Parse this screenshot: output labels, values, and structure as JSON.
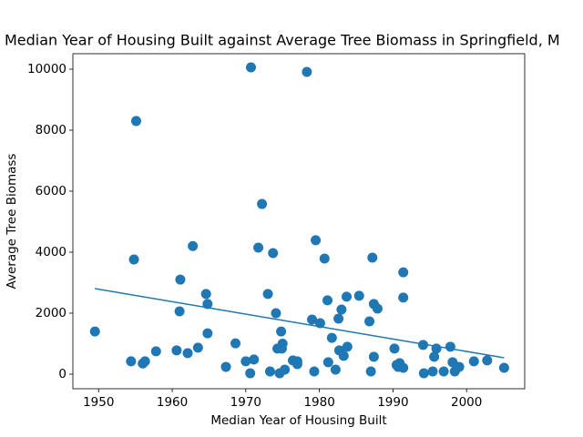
{
  "chart_data": {
    "type": "scatter",
    "title": "Median Year of Housing Built against Average Tree Biomass in Springfield, M",
    "x_label": "Median Year of Housing Built",
    "y_label": "Average Tree Biomass",
    "xlim": [
      1946.5,
      2007.9
    ],
    "ylim": [
      -478,
      10507
    ],
    "xticks": [
      1950,
      1960,
      1970,
      1980,
      1990,
      2000
    ],
    "yticks": [
      0,
      2000,
      4000,
      6000,
      8000,
      10000
    ],
    "series": [
      {
        "type": "scatter",
        "color": "#1f77b4",
        "x": [
          1949.5,
          1954.4,
          1955.1,
          1954.8,
          1956.0,
          1956.3,
          1957.8,
          1960.6,
          1961.0,
          1961.1,
          1962.1,
          1962.8,
          1963.5,
          1964.6,
          1964.8,
          1964.8,
          1967.3,
          1968.6,
          1970.0,
          1970.6,
          1970.7,
          1971.1,
          1971.7,
          1972.2,
          1973.0,
          1973.3,
          1973.7,
          1974.1,
          1974.3,
          1974.6,
          1974.8,
          1974.9,
          1975.0,
          1975.3,
          1976.4,
          1977.0,
          1977.0,
          1978.3,
          1979.0,
          1979.3,
          1979.5,
          1980.1,
          1980.7,
          1981.1,
          1981.2,
          1981.7,
          1982.2,
          1982.6,
          1982.7,
          1983.0,
          1983.3,
          1983.7,
          1983.8,
          1985.4,
          1986.8,
          1987.0,
          1987.2,
          1987.4,
          1987.4,
          1987.9,
          1990.2,
          1990.5,
          1990.9,
          1990.7,
          1991.4,
          1991.4,
          1991.4,
          1994.1,
          1994.2,
          1995.4,
          1995.6,
          1995.9,
          1996.9,
          1997.8,
          1998.1,
          1998.4,
          1999.0,
          2001.0,
          2002.8,
          2005.1
        ],
        "values": [
          1400,
          420,
          8300,
          3760,
          350,
          420,
          750,
          780,
          2060,
          3100,
          690,
          4200,
          870,
          2630,
          2300,
          1340,
          240,
          1010,
          420,
          30,
          10060,
          480,
          4150,
          5580,
          2630,
          90,
          3970,
          2000,
          840,
          30,
          1400,
          840,
          1000,
          150,
          450,
          330,
          420,
          9910,
          1790,
          90,
          4390,
          1670,
          3790,
          2420,
          390,
          1190,
          150,
          1820,
          780,
          2120,
          600,
          2540,
          900,
          2570,
          1730,
          90,
          3820,
          570,
          2300,
          2150,
          840,
          300,
          360,
          240,
          3340,
          2510,
          210,
          960,
          30,
          90,
          570,
          840,
          90,
          900,
          390,
          90,
          240,
          420,
          450,
          210
        ]
      },
      {
        "type": "line",
        "color": "#1f77b4",
        "x": [
          1949.5,
          2005.1
        ],
        "values": [
          2806,
          537
        ]
      }
    ]
  }
}
